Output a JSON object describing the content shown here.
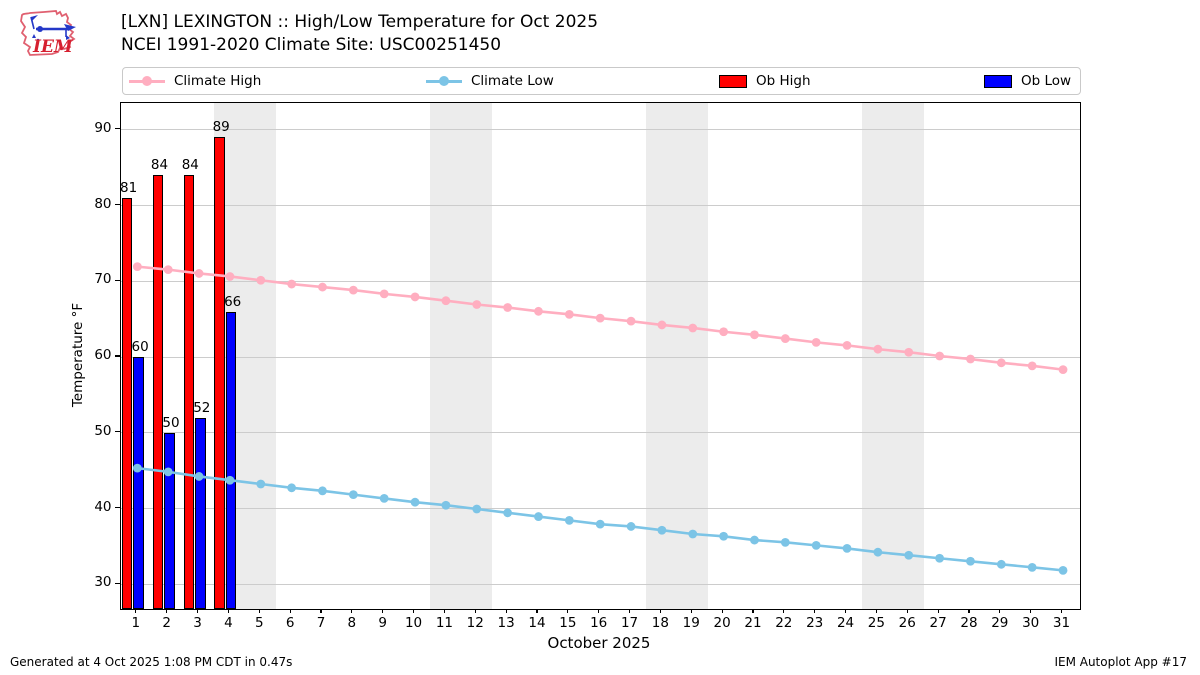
{
  "header": {
    "title_line1": "[LXN] LEXINGTON :: High/Low Temperature for Oct 2025",
    "title_line2": "NCEI 1991-2020 Climate Site: USC00251450",
    "logo_text": "IEM"
  },
  "legend": {
    "items": [
      {
        "label": "Climate High",
        "type": "line",
        "color": "#ffaec0"
      },
      {
        "label": "Climate Low",
        "type": "line",
        "color": "#7cc4e6"
      },
      {
        "label": "Ob High",
        "type": "patch",
        "color": "#ff0000"
      },
      {
        "label": "Ob Low",
        "type": "patch",
        "color": "#0000ff"
      }
    ]
  },
  "footer": {
    "left": "Generated at 4 Oct 2025 1:08 PM CDT in 0.47s",
    "right": "IEM Autoplot App #17"
  },
  "chart_data": {
    "type": "combo",
    "xlabel": "October 2025",
    "ylabel": "Temperature °F",
    "x": [
      1,
      2,
      3,
      4,
      5,
      6,
      7,
      8,
      9,
      10,
      11,
      12,
      13,
      14,
      15,
      16,
      17,
      18,
      19,
      20,
      21,
      22,
      23,
      24,
      25,
      26,
      27,
      28,
      29,
      30,
      31
    ],
    "xlim": [
      0.47,
      31.55
    ],
    "ylim": [
      26.8,
      93.6
    ],
    "yticks": [
      30,
      40,
      50,
      60,
      70,
      80,
      90
    ],
    "grid": true,
    "weekend_bands": [
      [
        3.5,
        5.5
      ],
      [
        10.5,
        12.5
      ],
      [
        17.5,
        19.5
      ],
      [
        24.5,
        26.5
      ]
    ],
    "series": [
      {
        "name": "Climate High",
        "type": "line",
        "color": "#ffaec0",
        "values": [
          72.0,
          71.6,
          71.1,
          70.7,
          70.2,
          69.7,
          69.3,
          68.9,
          68.4,
          68.0,
          67.5,
          67.0,
          66.6,
          66.1,
          65.7,
          65.2,
          64.8,
          64.3,
          63.9,
          63.4,
          63.0,
          62.5,
          62.0,
          61.6,
          61.1,
          60.7,
          60.2,
          59.8,
          59.3,
          58.9,
          58.4
        ]
      },
      {
        "name": "Climate Low",
        "type": "line",
        "color": "#7cc4e6",
        "values": [
          45.4,
          44.9,
          44.3,
          43.8,
          43.3,
          42.8,
          42.4,
          41.9,
          41.4,
          40.9,
          40.5,
          40.0,
          39.5,
          39.0,
          38.5,
          38.0,
          37.7,
          37.2,
          36.7,
          36.4,
          35.9,
          35.6,
          35.2,
          34.8,
          34.3,
          33.9,
          33.5,
          33.1,
          32.7,
          32.3,
          31.9
        ]
      },
      {
        "name": "Ob High",
        "type": "bar",
        "color": "#ff0000",
        "days": [
          1,
          2,
          3,
          4
        ],
        "values": [
          81,
          84,
          84,
          89
        ]
      },
      {
        "name": "Ob Low",
        "type": "bar",
        "color": "#0000ff",
        "days": [
          1,
          2,
          3,
          4
        ],
        "values": [
          60,
          50,
          52,
          66
        ]
      }
    ]
  }
}
